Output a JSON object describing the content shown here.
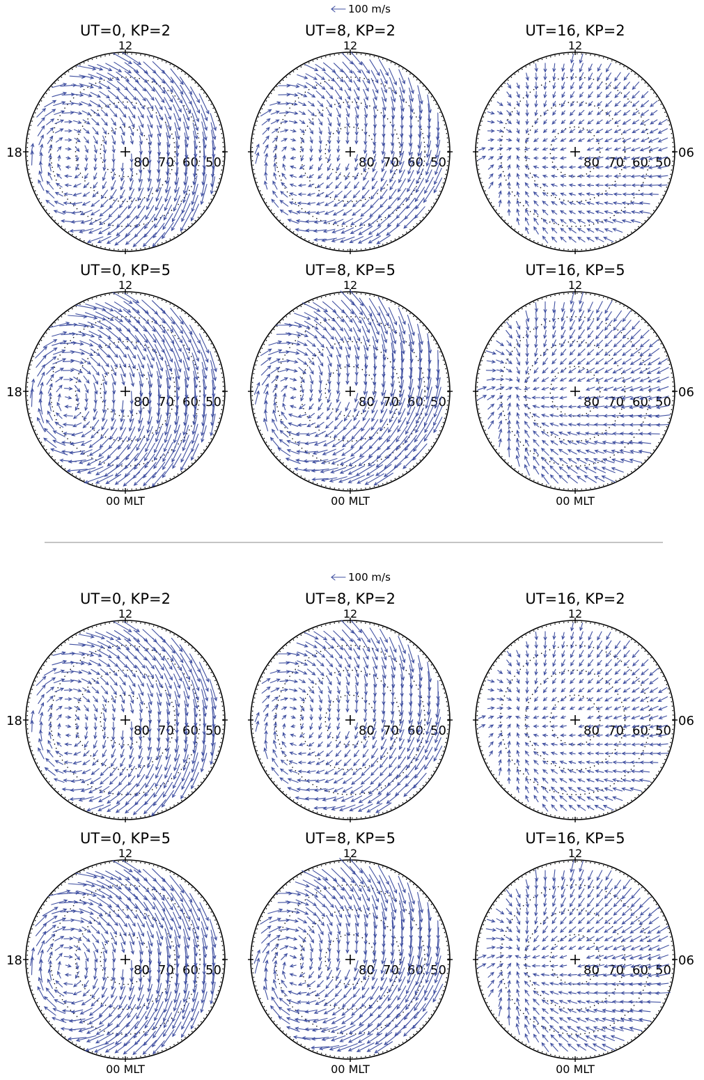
{
  "chart_data": {
    "type": "vector-field-polar",
    "reference_vector": "100 m/s",
    "mlt_labels": {
      "top": "12",
      "left": "18",
      "right": "06",
      "bottom": "00 MLT"
    },
    "latitude_rings": [
      80,
      70,
      60,
      50
    ],
    "latitude_labels": [
      "80",
      "70",
      "60",
      "50"
    ],
    "arrow_color": "#3f4fa0",
    "groups": [
      {
        "scale_label": "100 m/s",
        "panels": [
          {
            "title": "UT=0, KP=2",
            "ut": 0,
            "kp": 2,
            "left_label": true,
            "right_label": false,
            "bottom_label": false
          },
          {
            "title": "UT=8, KP=2",
            "ut": 8,
            "kp": 2,
            "left_label": false,
            "right_label": false,
            "bottom_label": false
          },
          {
            "title": "UT=16, KP=2",
            "ut": 16,
            "kp": 2,
            "left_label": false,
            "right_label": true,
            "bottom_label": false
          },
          {
            "title": "UT=0, KP=5",
            "ut": 0,
            "kp": 5,
            "left_label": true,
            "right_label": false,
            "bottom_label": true
          },
          {
            "title": "UT=8, KP=5",
            "ut": 8,
            "kp": 5,
            "left_label": false,
            "right_label": false,
            "bottom_label": true
          },
          {
            "title": "UT=16, KP=5",
            "ut": 16,
            "kp": 5,
            "left_label": false,
            "right_label": true,
            "bottom_label": true
          }
        ]
      },
      {
        "scale_label": "100 m/s",
        "panels": [
          {
            "title": "UT=0, KP=2",
            "ut": 0,
            "kp": 2,
            "left_label": true,
            "right_label": false,
            "bottom_label": false
          },
          {
            "title": "UT=8, KP=2",
            "ut": 8,
            "kp": 2,
            "left_label": false,
            "right_label": false,
            "bottom_label": false
          },
          {
            "title": "UT=16, KP=2",
            "ut": 16,
            "kp": 2,
            "left_label": false,
            "right_label": true,
            "bottom_label": false
          },
          {
            "title": "UT=0, KP=5",
            "ut": 0,
            "kp": 5,
            "left_label": true,
            "right_label": false,
            "bottom_label": true
          },
          {
            "title": "UT=8, KP=5",
            "ut": 8,
            "kp": 5,
            "left_label": false,
            "right_label": false,
            "bottom_label": true
          },
          {
            "title": "UT=16, KP=5",
            "ut": 16,
            "kp": 5,
            "left_label": false,
            "right_label": true,
            "bottom_label": true
          }
        ]
      }
    ]
  }
}
